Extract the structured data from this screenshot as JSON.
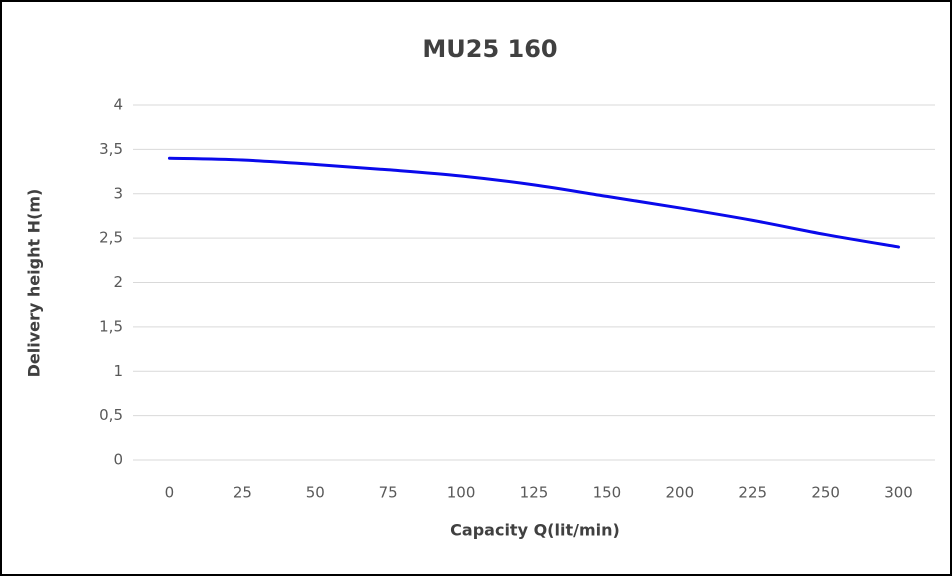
{
  "chart_data": {
    "type": "line",
    "title": "MU25 160",
    "x_label": "Capacity Q(lit/min)",
    "y_label": "Delivery height H(m)",
    "categories": [
      "0",
      "25",
      "50",
      "75",
      "100",
      "125",
      "150",
      "200",
      "225",
      "250",
      "300"
    ],
    "series": [
      {
        "name": "H",
        "color": "#0a0aeb",
        "values": [
          3.4,
          3.38,
          3.33,
          3.27,
          3.2,
          3.1,
          2.97,
          2.84,
          2.7,
          2.54,
          2.4
        ]
      }
    ],
    "ylim": [
      0,
      4
    ],
    "yticks": [
      0,
      {
        "value": 0.5,
        "label": "0,5"
      },
      1,
      {
        "value": 1.5,
        "label": "1,5"
      },
      2,
      {
        "value": 2.5,
        "label": "2,5"
      },
      3,
      {
        "value": 3.5,
        "label": "3,5"
      },
      4
    ],
    "grid": true
  }
}
